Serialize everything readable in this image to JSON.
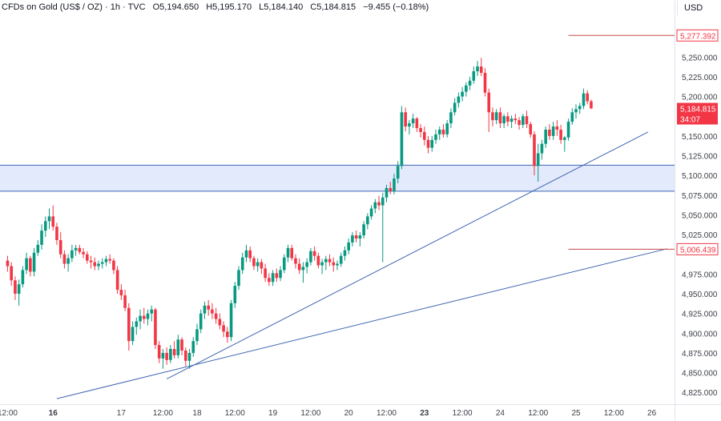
{
  "header": {
    "symbol": "CFDs on Gold (US$ / OZ)",
    "interval": "1h",
    "source": "TVC",
    "open": "O5,194.650",
    "high": "H5,195.170",
    "low": "L5,184.140",
    "close": "C5,184.815",
    "change": "−9.455 (−0.18%)"
  },
  "currency_button": "USD",
  "colors": {
    "up": "#089981",
    "down": "#f23645",
    "zone_fill": "#e3eafc",
    "trendline": "#3f66b3",
    "level_line": "#c74a4a",
    "price_tag": "#f23645",
    "text": "#131722",
    "axis_text": "#3c3f47"
  },
  "chart_data": {
    "type": "candlestick",
    "timeframe": "1h",
    "ylim": [
      4810,
      5300
    ],
    "xlim": [
      -2,
      176
    ],
    "x_ticks": [
      {
        "i": 0,
        "label": "12:00",
        "bold": false
      },
      {
        "i": 12,
        "label": "16",
        "bold": true
      },
      {
        "i": 30,
        "label": "17",
        "bold": false
      },
      {
        "i": 41,
        "label": "12:00",
        "bold": false
      },
      {
        "i": 50,
        "label": "18",
        "bold": false
      },
      {
        "i": 60,
        "label": "12:00",
        "bold": false
      },
      {
        "i": 70,
        "label": "19",
        "bold": false
      },
      {
        "i": 80,
        "label": "12:00",
        "bold": false
      },
      {
        "i": 90,
        "label": "20",
        "bold": false
      },
      {
        "i": 100,
        "label": "12:00",
        "bold": false
      },
      {
        "i": 110,
        "label": "23",
        "bold": true
      },
      {
        "i": 120,
        "label": "12:00",
        "bold": false
      },
      {
        "i": 130,
        "label": "24",
        "bold": false
      },
      {
        "i": 140,
        "label": "12:00",
        "bold": false
      },
      {
        "i": 150,
        "label": "25",
        "bold": false
      },
      {
        "i": 160,
        "label": "12:00",
        "bold": false
      },
      {
        "i": 170,
        "label": "26",
        "bold": false
      }
    ],
    "y_ticks": [
      {
        "v": 5250,
        "label": "5,250.000"
      },
      {
        "v": 5225,
        "label": "5,225.000"
      },
      {
        "v": 5200,
        "label": "5,200.000"
      },
      {
        "v": 5150,
        "label": "5,150.000"
      },
      {
        "v": 5125,
        "label": "5,125.000"
      },
      {
        "v": 5100,
        "label": "5,100.000"
      },
      {
        "v": 5075,
        "label": "5,075.000"
      },
      {
        "v": 5050,
        "label": "5,050.000"
      },
      {
        "v": 5025,
        "label": "5,025.000"
      },
      {
        "v": 4975,
        "label": "4,975.000"
      },
      {
        "v": 4950,
        "label": "4,950.000"
      },
      {
        "v": 4925,
        "label": "4,925.000"
      },
      {
        "v": 4900,
        "label": "4,900.000"
      },
      {
        "v": 4875,
        "label": "4,875.000"
      },
      {
        "v": 4850,
        "label": "4,850.000"
      },
      {
        "v": 4825,
        "label": "4,825.000"
      }
    ],
    "zone": {
      "from": 5080,
      "to": 5113
    },
    "trendlines": [
      {
        "from": {
          "i": 42,
          "v": 4842
        },
        "to": {
          "i": 169,
          "v": 5155
        }
      },
      {
        "from": {
          "i": 13,
          "v": 4817
        },
        "to": {
          "i": 174,
          "v": 5007
        }
      }
    ],
    "levels": [
      {
        "v": 5277.392,
        "label": "5,277.392",
        "from_i": 148
      },
      {
        "v": 5006.439,
        "label": "5,006.439",
        "from_i": 148
      }
    ],
    "last_price": {
      "v": 5184.815,
      "label": "5,184.815",
      "countdown": "34:07"
    },
    "candles": [
      [
        4992,
        4998,
        4978,
        4985
      ],
      [
        4985,
        4990,
        4960,
        4967
      ],
      [
        4967,
        4972,
        4942,
        4950
      ],
      [
        4950,
        4968,
        4935,
        4962
      ],
      [
        4962,
        4985,
        4958,
        4980
      ],
      [
        4980,
        5002,
        4975,
        4995
      ],
      [
        4995,
        4998,
        4972,
        4978
      ],
      [
        4978,
        5008,
        4972,
        5002
      ],
      [
        5002,
        5018,
        4998,
        5012
      ],
      [
        5012,
        5038,
        5006,
        5030
      ],
      [
        5030,
        5048,
        5022,
        5042
      ],
      [
        5042,
        5058,
        5032,
        5048
      ],
      [
        5048,
        5062,
        5030,
        5035
      ],
      [
        5035,
        5040,
        5012,
        5018
      ],
      [
        5018,
        5028,
        4995,
        5000
      ],
      [
        5000,
        5005,
        4982,
        4988
      ],
      [
        4988,
        5000,
        4978,
        4995
      ],
      [
        4995,
        5012,
        4990,
        5005
      ],
      [
        5005,
        5012,
        4998,
        5008
      ],
      [
        5008,
        5012,
        5000,
        5003
      ],
      [
        5003,
        5008,
        4995,
        5000
      ],
      [
        5000,
        5004,
        4988,
        4992
      ],
      [
        4992,
        4998,
        4982,
        4990
      ],
      [
        4990,
        4996,
        4980,
        4985
      ],
      [
        4985,
        4992,
        4980,
        4988
      ],
      [
        4988,
        4995,
        4982,
        4990
      ],
      [
        4990,
        4998,
        4985,
        4994
      ],
      [
        4994,
        5000,
        4988,
        4992
      ],
      [
        4992,
        4995,
        4975,
        4980
      ],
      [
        4980,
        4985,
        4950,
        4955
      ],
      [
        4955,
        4962,
        4942,
        4948
      ],
      [
        4948,
        4955,
        4928,
        4932
      ],
      [
        4932,
        4938,
        4878,
        4890
      ],
      [
        4890,
        4915,
        4885,
        4908
      ],
      [
        4908,
        4920,
        4898,
        4915
      ],
      [
        4915,
        4930,
        4905,
        4922
      ],
      [
        4922,
        4932,
        4912,
        4918
      ],
      [
        4918,
        4930,
        4910,
        4925
      ],
      [
        4925,
        4935,
        4915,
        4930
      ],
      [
        4930,
        4932,
        4880,
        4885
      ],
      [
        4885,
        4890,
        4862,
        4868
      ],
      [
        4868,
        4880,
        4855,
        4875
      ],
      [
        4875,
        4882,
        4860,
        4866
      ],
      [
        4866,
        4885,
        4862,
        4880
      ],
      [
        4880,
        4890,
        4868,
        4872
      ],
      [
        4872,
        4898,
        4868,
        4892
      ],
      [
        4892,
        4895,
        4872,
        4878
      ],
      [
        4878,
        4882,
        4858,
        4865
      ],
      [
        4865,
        4880,
        4855,
        4875
      ],
      [
        4875,
        4895,
        4870,
        4890
      ],
      [
        4890,
        4912,
        4885,
        4905
      ],
      [
        4905,
        4930,
        4900,
        4925
      ],
      [
        4925,
        4940,
        4918,
        4935
      ],
      [
        4935,
        4942,
        4922,
        4930
      ],
      [
        4930,
        4938,
        4918,
        4925
      ],
      [
        4925,
        4932,
        4912,
        4918
      ],
      [
        4918,
        4925,
        4905,
        4910
      ],
      [
        4910,
        4915,
        4895,
        4902
      ],
      [
        4902,
        4908,
        4888,
        4895
      ],
      [
        4895,
        4942,
        4890,
        4938
      ],
      [
        4938,
        4965,
        4932,
        4960
      ],
      [
        4960,
        4985,
        4955,
        4980
      ],
      [
        4980,
        5002,
        4975,
        4996
      ],
      [
        4996,
        5012,
        4990,
        5005
      ],
      [
        5005,
        5010,
        4990,
        4995
      ],
      [
        4995,
        4998,
        4980,
        4985
      ],
      [
        4985,
        4995,
        4978,
        4990
      ],
      [
        4990,
        4994,
        4975,
        4982
      ],
      [
        4982,
        4988,
        4965,
        4970
      ],
      [
        4970,
        4976,
        4960,
        4965
      ],
      [
        4965,
        4980,
        4960,
        4976
      ],
      [
        4976,
        4982,
        4965,
        4970
      ],
      [
        4970,
        4985,
        4966,
        4980
      ],
      [
        4980,
        5000,
        4976,
        4996
      ],
      [
        4996,
        5012,
        4990,
        5008
      ],
      [
        5008,
        5012,
        4992,
        4995
      ],
      [
        4995,
        5000,
        4982,
        4988
      ],
      [
        4988,
        4995,
        4975,
        4980
      ],
      [
        4980,
        4990,
        4964,
        4984
      ],
      [
        4984,
        4995,
        4976,
        4990
      ],
      [
        4990,
        5008,
        4986,
        5004
      ],
      [
        5004,
        5010,
        4992,
        4998
      ],
      [
        4998,
        5002,
        4982,
        4986
      ],
      [
        4986,
        4994,
        4975,
        4990
      ],
      [
        4990,
        4998,
        4980,
        4994
      ],
      [
        4994,
        5000,
        4985,
        4990
      ],
      [
        4990,
        4996,
        4978,
        4986
      ],
      [
        4986,
        4992,
        4980,
        4988
      ],
      [
        4988,
        5002,
        4984,
        4998
      ],
      [
        4998,
        5010,
        4992,
        5005
      ],
      [
        5005,
        5020,
        5000,
        5015
      ],
      [
        5015,
        5028,
        5010,
        5024
      ],
      [
        5024,
        5030,
        5015,
        5020
      ],
      [
        5020,
        5028,
        5010,
        5024
      ],
      [
        5024,
        5042,
        5020,
        5038
      ],
      [
        5038,
        5052,
        5032,
        5048
      ],
      [
        5048,
        5062,
        5044,
        5058
      ],
      [
        5058,
        5070,
        5052,
        5066
      ],
      [
        5066,
        5074,
        5056,
        5062
      ],
      [
        5062,
        5078,
        4990,
        5072
      ],
      [
        5072,
        5088,
        5066,
        5084
      ],
      [
        5084,
        5092,
        5076,
        5080
      ],
      [
        5080,
        5102,
        5076,
        5096
      ],
      [
        5096,
        5118,
        5090,
        5112
      ],
      [
        5112,
        5188,
        5108,
        5180
      ],
      [
        5180,
        5186,
        5156,
        5162
      ],
      [
        5162,
        5170,
        5152,
        5166
      ],
      [
        5166,
        5178,
        5160,
        5172
      ],
      [
        5172,
        5174,
        5155,
        5160
      ],
      [
        5160,
        5165,
        5148,
        5155
      ],
      [
        5155,
        5162,
        5138,
        5145
      ],
      [
        5145,
        5150,
        5128,
        5135
      ],
      [
        5135,
        5150,
        5130,
        5145
      ],
      [
        5145,
        5158,
        5140,
        5152
      ],
      [
        5152,
        5162,
        5145,
        5158
      ],
      [
        5158,
        5165,
        5148,
        5152
      ],
      [
        5152,
        5170,
        5148,
        5166
      ],
      [
        5166,
        5185,
        5160,
        5180
      ],
      [
        5180,
        5198,
        5176,
        5192
      ],
      [
        5192,
        5205,
        5186,
        5200
      ],
      [
        5200,
        5212,
        5194,
        5206
      ],
      [
        5206,
        5218,
        5200,
        5214
      ],
      [
        5214,
        5225,
        5208,
        5220
      ],
      [
        5220,
        5238,
        5216,
        5232
      ],
      [
        5232,
        5245,
        5226,
        5238
      ],
      [
        5238,
        5249,
        5226,
        5230
      ],
      [
        5230,
        5236,
        5200,
        5205
      ],
      [
        5205,
        5210,
        5155,
        5180
      ],
      [
        5180,
        5186,
        5162,
        5170
      ],
      [
        5170,
        5184,
        5165,
        5180
      ],
      [
        5180,
        5186,
        5160,
        5166
      ],
      [
        5166,
        5178,
        5160,
        5175
      ],
      [
        5175,
        5180,
        5162,
        5168
      ],
      [
        5168,
        5176,
        5160,
        5172
      ],
      [
        5172,
        5178,
        5165,
        5170
      ],
      [
        5170,
        5174,
        5158,
        5164
      ],
      [
        5164,
        5178,
        5160,
        5175
      ],
      [
        5175,
        5182,
        5160,
        5165
      ],
      [
        5165,
        5168,
        5148,
        5152
      ],
      [
        5152,
        5156,
        5100,
        5112
      ],
      [
        5112,
        5140,
        5092,
        5128
      ],
      [
        5128,
        5145,
        5120,
        5140
      ],
      [
        5140,
        5162,
        5135,
        5158
      ],
      [
        5158,
        5165,
        5145,
        5150
      ],
      [
        5150,
        5168,
        5145,
        5162
      ],
      [
        5162,
        5170,
        5150,
        5158
      ],
      [
        5158,
        5164,
        5140,
        5145
      ],
      [
        5145,
        5150,
        5130,
        5148
      ],
      [
        5148,
        5172,
        5144,
        5168
      ],
      [
        5168,
        5185,
        5164,
        5180
      ],
      [
        5180,
        5190,
        5172,
        5184
      ],
      [
        5184,
        5192,
        5178,
        5188
      ],
      [
        5188,
        5210,
        5184,
        5204
      ],
      [
        5204,
        5208,
        5190,
        5194
      ],
      [
        5194,
        5196,
        5184,
        5185
      ]
    ]
  }
}
